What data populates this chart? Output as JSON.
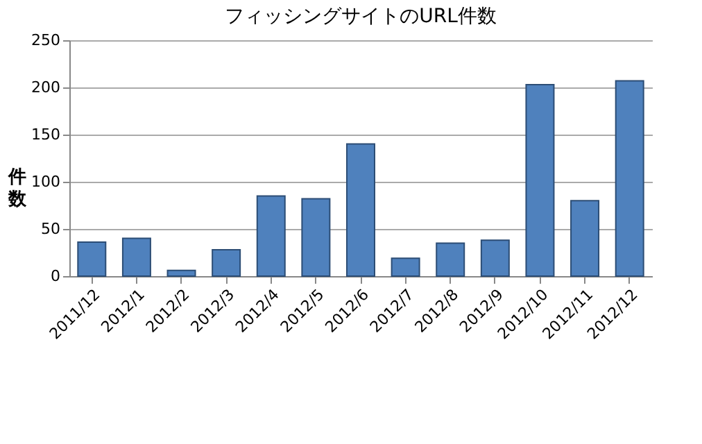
{
  "chart_data": {
    "type": "bar",
    "title": "フィッシングサイトのURL件数",
    "ylabel": "件数",
    "categories": [
      "2011/12",
      "2012/1",
      "2012/2",
      "2012/3",
      "2012/4",
      "2012/5",
      "2012/6",
      "2012/7",
      "2012/8",
      "2012/9",
      "2012/10",
      "2012/11",
      "2012/12"
    ],
    "values": [
      36,
      40,
      6,
      28,
      85,
      82,
      140,
      19,
      35,
      38,
      203,
      80,
      207
    ],
    "color": "#4f81bd",
    "ylim": [
      0,
      250
    ],
    "yticks": [
      0,
      50,
      100,
      150,
      200,
      250
    ],
    "grid": "y"
  }
}
